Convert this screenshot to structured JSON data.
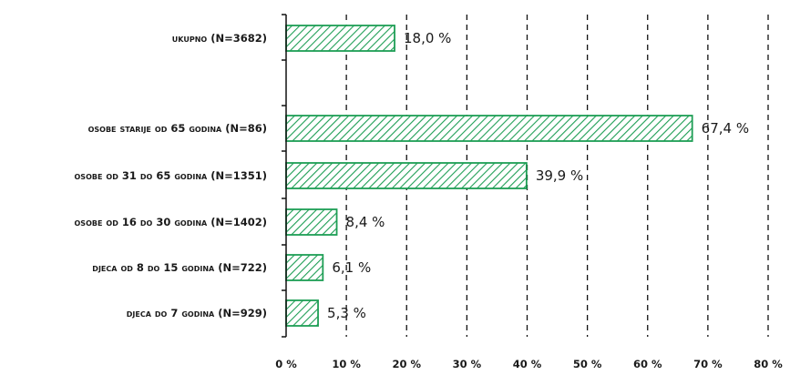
{
  "chart_data": {
    "type": "bar",
    "orientation": "horizontal",
    "categories": [
      "ukupno (N=3682)",
      "",
      "osobe starije od 65 godina (N=86)",
      "osobe od 31 do 65 godina (N=1351)",
      "osobe od 16 do 30 godina (N=1402)",
      "djeca od 8 do 15 godina (N=722)",
      "djeca do 7 godina (N=929)"
    ],
    "values": [
      18.0,
      null,
      67.4,
      39.9,
      8.4,
      6.1,
      5.3
    ],
    "value_labels": [
      "18,0 %",
      "",
      "67,4 %",
      "39,9 %",
      "8,4 %",
      "6,1 %",
      "5,3 %"
    ],
    "xlim": [
      0,
      80
    ],
    "xticks": [
      0,
      10,
      20,
      30,
      40,
      50,
      60,
      70,
      80
    ],
    "xtick_labels": [
      "0 %",
      "10 %",
      "20 %",
      "30 %",
      "40 %",
      "50 %",
      "60 %",
      "70 %",
      "80 %"
    ],
    "grid": "vertical dashed",
    "bar_style": "diagonal hatch",
    "bar_color": "#1e9e55"
  }
}
